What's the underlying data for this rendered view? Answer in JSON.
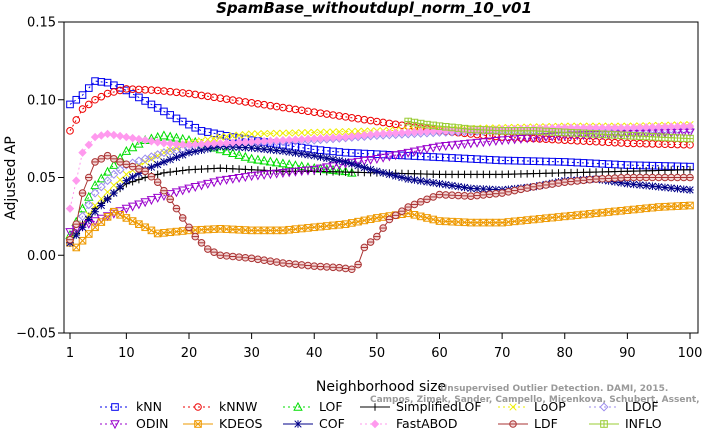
{
  "chart_data": {
    "type": "line",
    "title": "SpamBase_withoutdupl_norm_10_v01",
    "xlabel": "Neighborhood size",
    "ylabel": "Adjusted AP",
    "xlim": [
      1,
      100
    ],
    "ylim": [
      -0.05,
      0.15
    ],
    "x_ticks": [
      1,
      10,
      20,
      30,
      40,
      50,
      60,
      70,
      80,
      90,
      100
    ],
    "y_ticks": [
      -0.05,
      0.0,
      0.05,
      0.1,
      0.15
    ],
    "y_tick_labels": [
      "−0.05",
      "0.00",
      "0.05",
      "0.10",
      "0.15"
    ],
    "grid": false,
    "legend_position": "bottom",
    "watermark": [
      "Unsupervised Outlier Detection. DAMI, 2015.",
      "Campos, Zimek, Sander, Campello, Micenkova, Schubert, Assent, Houle"
    ],
    "series": [
      {
        "name": "kNN",
        "color": "#0000ee",
        "marker": "square",
        "dash": "2,3",
        "points": [
          [
            1,
            0.097
          ],
          [
            3,
            0.103
          ],
          [
            5,
            0.112
          ],
          [
            7,
            0.111
          ],
          [
            10,
            0.106
          ],
          [
            14,
            0.097
          ],
          [
            18,
            0.088
          ],
          [
            22,
            0.08
          ],
          [
            27,
            0.076
          ],
          [
            30,
            0.074
          ],
          [
            35,
            0.071
          ],
          [
            40,
            0.068
          ],
          [
            45,
            0.066
          ],
          [
            50,
            0.065
          ],
          [
            60,
            0.063
          ],
          [
            70,
            0.061
          ],
          [
            80,
            0.06
          ],
          [
            90,
            0.058
          ],
          [
            100,
            0.057
          ]
        ]
      },
      {
        "name": "kNNW",
        "color": "#ee0000",
        "marker": "circle",
        "dash": "2,3",
        "points": [
          [
            1,
            0.08
          ],
          [
            3,
            0.094
          ],
          [
            5,
            0.1
          ],
          [
            7,
            0.104
          ],
          [
            10,
            0.107
          ],
          [
            15,
            0.106
          ],
          [
            20,
            0.104
          ],
          [
            25,
            0.101
          ],
          [
            30,
            0.098
          ],
          [
            35,
            0.095
          ],
          [
            40,
            0.092
          ],
          [
            45,
            0.089
          ],
          [
            50,
            0.086
          ],
          [
            60,
            0.08
          ],
          [
            70,
            0.076
          ],
          [
            80,
            0.074
          ],
          [
            90,
            0.072
          ],
          [
            100,
            0.071
          ]
        ]
      },
      {
        "name": "LOF",
        "color": "#00dd00",
        "marker": "triangle-up",
        "dash": "2,3",
        "points": [
          [
            1,
            0.013
          ],
          [
            3,
            0.03
          ],
          [
            5,
            0.045
          ],
          [
            8,
            0.058
          ],
          [
            10,
            0.067
          ],
          [
            13,
            0.074
          ],
          [
            16,
            0.077
          ],
          [
            20,
            0.074
          ],
          [
            25,
            0.068
          ],
          [
            30,
            0.062
          ],
          [
            35,
            0.059
          ],
          [
            40,
            0.056
          ],
          [
            45,
            0.054
          ],
          [
            46,
            0.053
          ]
        ]
      },
      {
        "name": "SimplifiedLOF",
        "color": "#000000",
        "marker": "plus",
        "dash": "",
        "points": [
          [
            1,
            0.008
          ],
          [
            3,
            0.02
          ],
          [
            5,
            0.03
          ],
          [
            8,
            0.04
          ],
          [
            10,
            0.046
          ],
          [
            13,
            0.05
          ],
          [
            16,
            0.053
          ],
          [
            20,
            0.055
          ],
          [
            25,
            0.056
          ],
          [
            30,
            0.055
          ],
          [
            35,
            0.054
          ],
          [
            40,
            0.054
          ],
          [
            50,
            0.053
          ],
          [
            60,
            0.052
          ],
          [
            70,
            0.052
          ],
          [
            80,
            0.053
          ],
          [
            90,
            0.054
          ],
          [
            100,
            0.055
          ]
        ]
      },
      {
        "name": "LoOP",
        "color": "#eeee00",
        "marker": "x",
        "dash": "2,3",
        "points": [
          [
            1,
            0.01
          ],
          [
            3,
            0.02
          ],
          [
            5,
            0.032
          ],
          [
            8,
            0.045
          ],
          [
            10,
            0.052
          ],
          [
            13,
            0.06
          ],
          [
            16,
            0.066
          ],
          [
            20,
            0.072
          ],
          [
            25,
            0.076
          ],
          [
            30,
            0.078
          ],
          [
            40,
            0.079
          ],
          [
            50,
            0.08
          ],
          [
            60,
            0.081
          ],
          [
            70,
            0.082
          ],
          [
            80,
            0.083
          ],
          [
            90,
            0.083
          ],
          [
            100,
            0.084
          ]
        ]
      },
      {
        "name": "LDOF",
        "color": "#9c8cee",
        "marker": "diamond",
        "dash": "2,3",
        "points": [
          [
            1,
            0.01
          ],
          [
            3,
            0.025
          ],
          [
            5,
            0.04
          ],
          [
            8,
            0.052
          ],
          [
            10,
            0.058
          ],
          [
            13,
            0.062
          ],
          [
            16,
            0.066
          ],
          [
            20,
            0.069
          ],
          [
            25,
            0.071
          ],
          [
            30,
            0.072
          ],
          [
            40,
            0.074
          ],
          [
            50,
            0.077
          ],
          [
            60,
            0.079
          ],
          [
            70,
            0.08
          ],
          [
            80,
            0.08
          ],
          [
            90,
            0.081
          ],
          [
            100,
            0.081
          ]
        ]
      },
      {
        "name": "ODIN",
        "color": "#9900cc",
        "marker": "triangle-down",
        "dash": "2,3",
        "points": [
          [
            1,
            0.015
          ],
          [
            5,
            0.022
          ],
          [
            10,
            0.03
          ],
          [
            15,
            0.037
          ],
          [
            20,
            0.043
          ],
          [
            25,
            0.048
          ],
          [
            30,
            0.051
          ],
          [
            35,
            0.053
          ],
          [
            40,
            0.055
          ],
          [
            45,
            0.059
          ],
          [
            50,
            0.062
          ],
          [
            55,
            0.066
          ],
          [
            60,
            0.07
          ],
          [
            65,
            0.072
          ],
          [
            70,
            0.074
          ],
          [
            80,
            0.077
          ],
          [
            90,
            0.078
          ],
          [
            100,
            0.079
          ]
        ]
      },
      {
        "name": "KDEOS",
        "color": "#ee9900",
        "marker": "square-x",
        "dash": "",
        "points": [
          [
            1,
            0.008
          ],
          [
            2,
            0.005
          ],
          [
            5,
            0.018
          ],
          [
            8,
            0.028
          ],
          [
            10,
            0.024
          ],
          [
            12,
            0.02
          ],
          [
            15,
            0.014
          ],
          [
            20,
            0.016
          ],
          [
            25,
            0.017
          ],
          [
            30,
            0.016
          ],
          [
            35,
            0.016
          ],
          [
            40,
            0.018
          ],
          [
            45,
            0.02
          ],
          [
            50,
            0.024
          ],
          [
            55,
            0.027
          ],
          [
            60,
            0.022
          ],
          [
            65,
            0.021
          ],
          [
            70,
            0.021
          ],
          [
            75,
            0.023
          ],
          [
            80,
            0.025
          ],
          [
            85,
            0.027
          ],
          [
            90,
            0.029
          ],
          [
            95,
            0.031
          ],
          [
            100,
            0.032
          ]
        ]
      },
      {
        "name": "COF",
        "color": "#000088",
        "marker": "asterisk",
        "dash": "",
        "points": [
          [
            1,
            0.008
          ],
          [
            3,
            0.018
          ],
          [
            5,
            0.028
          ],
          [
            8,
            0.04
          ],
          [
            10,
            0.048
          ],
          [
            13,
            0.055
          ],
          [
            16,
            0.06
          ],
          [
            20,
            0.066
          ],
          [
            25,
            0.07
          ],
          [
            30,
            0.069
          ],
          [
            35,
            0.067
          ],
          [
            40,
            0.064
          ],
          [
            45,
            0.06
          ],
          [
            50,
            0.054
          ],
          [
            55,
            0.049
          ],
          [
            60,
            0.046
          ],
          [
            65,
            0.043
          ],
          [
            70,
            0.042
          ],
          [
            75,
            0.044
          ],
          [
            80,
            0.048
          ],
          [
            85,
            0.049
          ],
          [
            90,
            0.046
          ],
          [
            95,
            0.044
          ],
          [
            100,
            0.042
          ]
        ]
      },
      {
        "name": "FastABOD",
        "color": "#ff99ee",
        "marker": "diamond-filled",
        "dash": "2,3",
        "points": [
          [
            1,
            0.03
          ],
          [
            3,
            0.066
          ],
          [
            5,
            0.076
          ],
          [
            7,
            0.078
          ],
          [
            10,
            0.076
          ],
          [
            13,
            0.074
          ],
          [
            16,
            0.072
          ],
          [
            20,
            0.071
          ],
          [
            25,
            0.072
          ],
          [
            30,
            0.073
          ],
          [
            35,
            0.074
          ],
          [
            40,
            0.075
          ],
          [
            45,
            0.076
          ],
          [
            50,
            0.078
          ],
          [
            60,
            0.08
          ],
          [
            70,
            0.081
          ],
          [
            80,
            0.082
          ],
          [
            90,
            0.082
          ],
          [
            100,
            0.083
          ]
        ]
      },
      {
        "name": "LDF",
        "color": "#aa3333",
        "marker": "circle-dash",
        "dash": "",
        "points": [
          [
            1,
            0.01
          ],
          [
            2,
            0.02
          ],
          [
            3,
            0.04
          ],
          [
            5,
            0.06
          ],
          [
            7,
            0.064
          ],
          [
            9,
            0.06
          ],
          [
            11,
            0.057
          ],
          [
            13,
            0.054
          ],
          [
            15,
            0.047
          ],
          [
            17,
            0.036
          ],
          [
            19,
            0.024
          ],
          [
            21,
            0.012
          ],
          [
            23,
            0.004
          ],
          [
            25,
            0.0
          ],
          [
            30,
            -0.002
          ],
          [
            35,
            -0.005
          ],
          [
            40,
            -0.007
          ],
          [
            44,
            -0.008
          ],
          [
            46,
            -0.009
          ],
          [
            47,
            -0.006
          ],
          [
            48,
            0.005
          ],
          [
            50,
            0.012
          ],
          [
            52,
            0.023
          ],
          [
            55,
            0.031
          ],
          [
            58,
            0.036
          ],
          [
            60,
            0.039
          ],
          [
            65,
            0.038
          ],
          [
            70,
            0.04
          ],
          [
            75,
            0.044
          ],
          [
            80,
            0.047
          ],
          [
            85,
            0.049
          ],
          [
            90,
            0.05
          ],
          [
            95,
            0.05
          ],
          [
            100,
            0.05
          ]
        ]
      },
      {
        "name": "INFLO",
        "color": "#99cc33",
        "marker": "square-plus",
        "dash": "",
        "points": [
          [
            55,
            0.086
          ],
          [
            58,
            0.084
          ],
          [
            60,
            0.083
          ],
          [
            65,
            0.081
          ],
          [
            70,
            0.08
          ],
          [
            75,
            0.08
          ],
          [
            80,
            0.079
          ],
          [
            85,
            0.078
          ],
          [
            90,
            0.077
          ],
          [
            95,
            0.076
          ],
          [
            100,
            0.075
          ]
        ]
      }
    ]
  }
}
